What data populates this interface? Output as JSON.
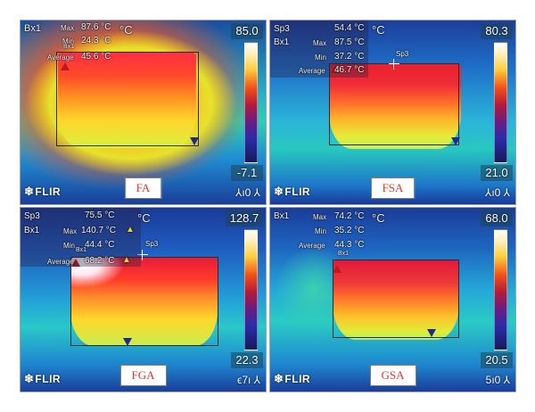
{
  "panels": [
    {
      "id": "FA",
      "label": "FA",
      "scale_max": "85.0",
      "scale_min": "-7.1",
      "unit": "°C",
      "corner": "⅄ı0 ⅄",
      "measure_label": "Bx1",
      "rows": [
        {
          "key": "Max",
          "value": "87.6 °C"
        },
        {
          "key": "Min",
          "value": "24.3 °C"
        },
        {
          "key": "Average",
          "value": "45.6 °C"
        }
      ],
      "box_tag": "Bx1"
    },
    {
      "id": "FSA",
      "label": "FSA",
      "scale_max": "80.3",
      "scale_min": "21.0",
      "unit": "°C",
      "corner": "⅄ı0 ⅄",
      "spot_label": "Sp3",
      "spot_value": "54.4 °C",
      "measure_label": "Bx1",
      "rows": [
        {
          "key": "Max",
          "value": "87.5 °C"
        },
        {
          "key": "Min",
          "value": "37.2 °C"
        },
        {
          "key": "Average",
          "value": "46.7 °C"
        }
      ],
      "spot_tag": "Sp3"
    },
    {
      "id": "FGA",
      "label": "FGA",
      "scale_max": "128.7",
      "scale_min": "22.3",
      "unit": "°C",
      "corner": "ϵ7ı ⅄",
      "spot_label": "Sp3",
      "spot_value": "75.5 °C",
      "measure_label": "Bx1",
      "rows": [
        {
          "key": "Max",
          "value": "140.7 °C"
        },
        {
          "key": "Min",
          "value": "44.4 °C"
        },
        {
          "key": "Average",
          "value": "68.2 °C"
        }
      ],
      "spot_tag": "Sp3",
      "box_tag": "Bx1"
    },
    {
      "id": "GSA",
      "label": "GSA",
      "scale_max": "68.0",
      "scale_min": "20.5",
      "unit": "°C",
      "corner": "5ı0 ⅄",
      "measure_label": "Bx1",
      "rows": [
        {
          "key": "Max",
          "value": "74.2 °C"
        },
        {
          "key": "Min",
          "value": "35.2 °C"
        },
        {
          "key": "Average",
          "value": "44.3 °C"
        }
      ],
      "box_tag": "Bx1"
    }
  ],
  "brand": "FLIR",
  "brand_icon": "snowflake-icon",
  "colors": {
    "label_text": "#e0392b",
    "roi_border": "#2b2b2b",
    "max_marker": "#c0181e",
    "min_marker": "#1f2a8a"
  }
}
